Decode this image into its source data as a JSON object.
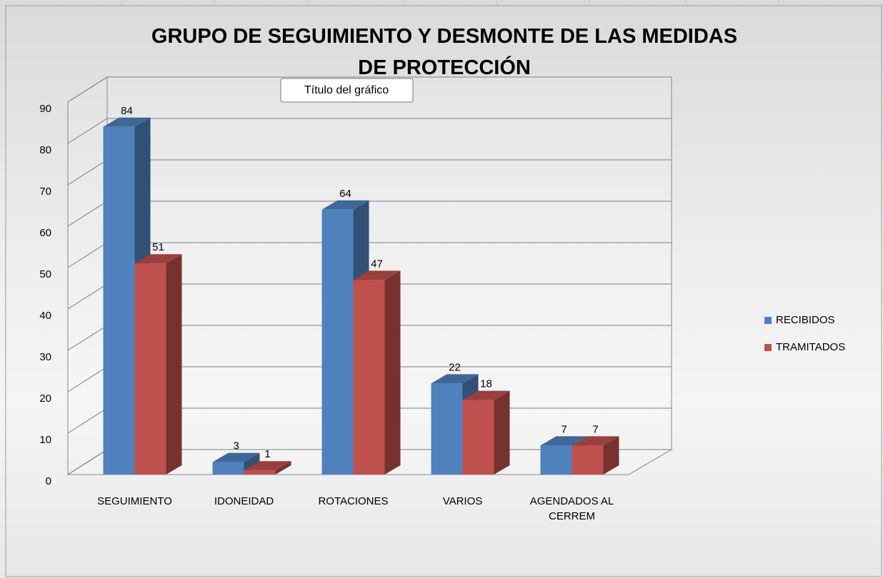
{
  "chart_data": {
    "type": "bar3d",
    "title": "GRUPO DE SEGUIMIENTO Y DESMONTE DE LAS MEDIDAS DE PROTECCIÓN",
    "tooltip": "Título del gráfico",
    "categories": [
      "SEGUIMIENTO",
      "IDONEIDAD",
      "ROTACIONES",
      "VARIOS",
      "AGENDADOS AL CERREM"
    ],
    "series": [
      {
        "name": "RECIBIDOS",
        "color": "#4f81bd",
        "values": [
          84,
          3,
          64,
          22,
          7
        ]
      },
      {
        "name": "TRAMITADOS",
        "color": "#c0504d",
        "values": [
          51,
          1,
          47,
          18,
          7
        ]
      }
    ],
    "ylim": [
      0,
      90
    ],
    "yticks": [
      0,
      10,
      20,
      30,
      40,
      50,
      60,
      70,
      80,
      90
    ],
    "grid": true,
    "legend": "right"
  }
}
